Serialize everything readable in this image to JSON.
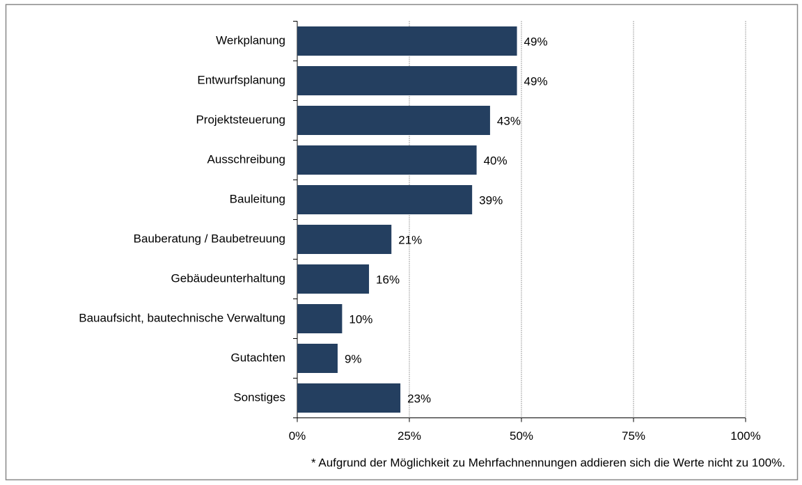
{
  "chart_data": {
    "type": "bar",
    "orientation": "horizontal",
    "categories": [
      "Werkplanung",
      "Entwurfsplanung",
      "Projektsteuerung",
      "Ausschreibung",
      "Bauleitung",
      "Bauberatung / Baubetreuung",
      "Gebäudeunterhaltung",
      "Bauaufsicht, bautechnische Verwaltung",
      "Gutachten",
      "Sonstiges"
    ],
    "values": [
      49,
      49,
      43,
      40,
      39,
      21,
      16,
      10,
      9,
      23
    ],
    "value_labels": [
      "49%",
      "49%",
      "43%",
      "40%",
      "39%",
      "21%",
      "16%",
      "10%",
      "9%",
      "23%"
    ],
    "color": "#243f60",
    "xlim": [
      0,
      100
    ],
    "xticks": [
      {
        "value": 0,
        "label": "0%"
      },
      {
        "value": 25,
        "label": "25%"
      },
      {
        "value": 50,
        "label": "50%"
      },
      {
        "value": 75,
        "label": "75%"
      },
      {
        "value": 100,
        "label": "100%"
      }
    ],
    "grid": true,
    "footnote": "* Aufgrund der Möglichkeit zu Mehrfachnennungen addieren sich die Werte nicht zu 100%."
  }
}
